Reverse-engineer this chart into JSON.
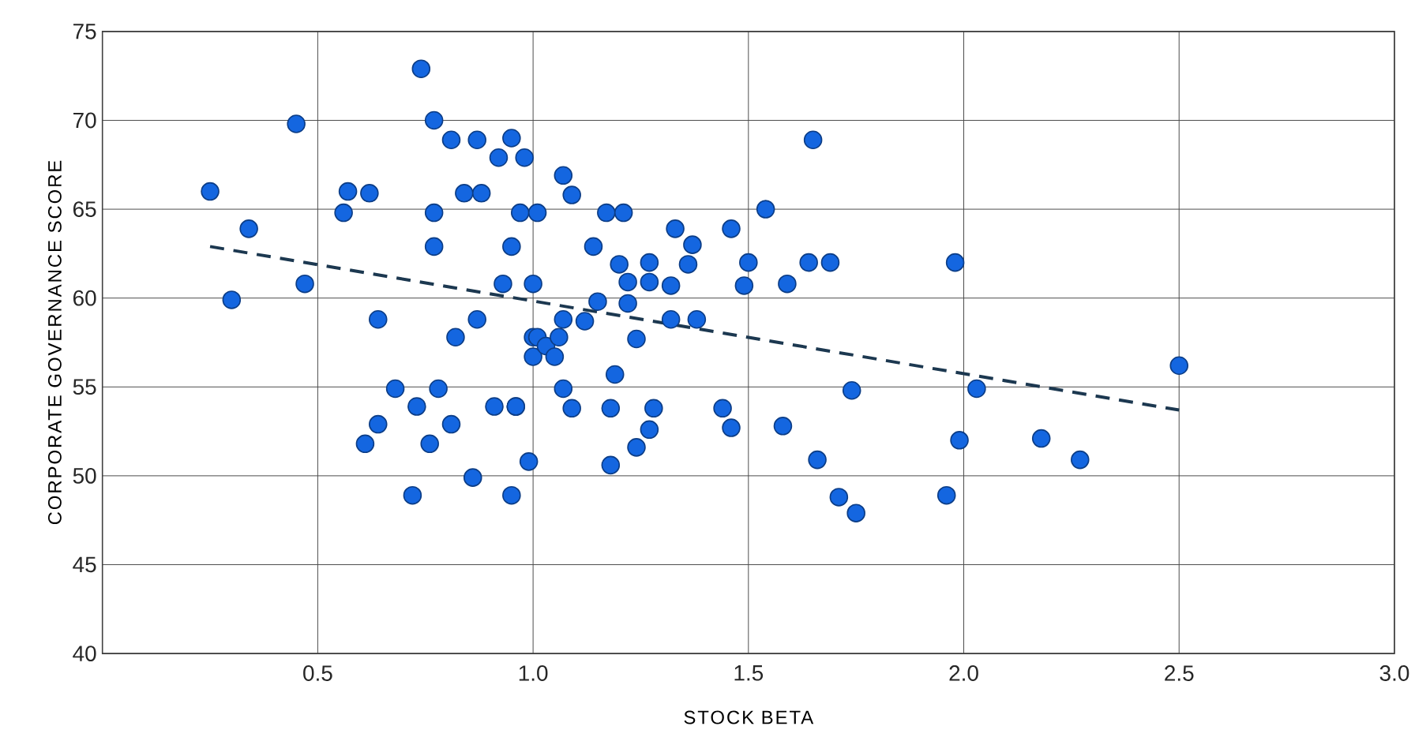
{
  "chart_data": {
    "type": "scatter",
    "xlabel": "STOCK BETA",
    "ylabel": "CORPORATE GOVERNANCE SCORE",
    "xlim": [
      0,
      3
    ],
    "ylim": [
      40,
      75
    ],
    "xticks": [
      {
        "value": 0.5,
        "label": "0.5"
      },
      {
        "value": 1,
        "label": "1.0"
      },
      {
        "value": 1.5,
        "label": "1.5"
      },
      {
        "value": 2,
        "label": "2.0"
      },
      {
        "value": 2.5,
        "label": "2.5"
      },
      {
        "value": 3,
        "label": "3.0"
      }
    ],
    "yticks": [
      40,
      45,
      50,
      55,
      60,
      65,
      70,
      75
    ],
    "grid": true,
    "marker": "circle",
    "series": [
      {
        "color": "#1466e0",
        "x": [
          0.25,
          0.3,
          0.34,
          0.45,
          0.47,
          0.56,
          0.57,
          0.62,
          0.61,
          0.64,
          0.64,
          0.68,
          0.72,
          0.73,
          0.74,
          0.76,
          0.77,
          0.77,
          0.77,
          0.78,
          0.81,
          0.81,
          0.82,
          0.84,
          0.86,
          0.87,
          0.87,
          0.88,
          0.91,
          0.92,
          0.93,
          0.95,
          0.95,
          0.95,
          0.96,
          0.96,
          0.97,
          0.98,
          0.99,
          1.0,
          1.0,
          1.0,
          1.01,
          1.01,
          1.03,
          1.05,
          1.06,
          1.07,
          1.07,
          1.07,
          1.09,
          1.09,
          1.12,
          1.14,
          1.15,
          1.17,
          1.18,
          1.18,
          1.19,
          1.2,
          1.21,
          1.22,
          1.22,
          1.24,
          1.24,
          1.27,
          1.27,
          1.27,
          1.28,
          1.32,
          1.32,
          1.33,
          1.36,
          1.37,
          1.38,
          1.44,
          1.46,
          1.46,
          1.49,
          1.5,
          1.54,
          1.58,
          1.59,
          1.64,
          1.65,
          1.66,
          1.69,
          1.71,
          1.74,
          1.75,
          1.96,
          1.98,
          1.99,
          2.03,
          2.18,
          2.27,
          2.5
        ],
        "values": [
          66,
          59.9,
          63.9,
          69.8,
          60.8,
          64.8,
          66,
          65.9,
          51.8,
          58.8,
          52.9,
          54.9,
          48.9,
          53.9,
          72.9,
          51.8,
          70,
          64.8,
          62.9,
          54.9,
          68.9,
          52.9,
          57.8,
          65.9,
          49.9,
          68.9,
          58.8,
          65.9,
          53.9,
          67.9,
          60.8,
          69,
          62.9,
          48.9,
          53.9,
          53.9,
          64.8,
          67.9,
          50.8,
          60.8,
          57.8,
          56.7,
          64.8,
          57.8,
          57.3,
          56.7,
          57.8,
          66.9,
          58.8,
          54.9,
          65.8,
          53.8,
          58.7,
          62.9,
          59.8,
          64.8,
          53.8,
          50.6,
          55.7,
          61.9,
          64.8,
          60.9,
          59.7,
          57.7,
          51.6,
          62,
          60.9,
          52.6,
          53.8,
          60.7,
          58.8,
          63.9,
          61.9,
          63,
          58.8,
          53.8,
          63.9,
          52.7,
          60.7,
          62,
          65,
          52.8,
          60.8,
          62,
          68.9,
          50.9,
          62,
          48.8,
          54.8,
          47.9,
          48.9,
          62,
          52,
          54.9,
          52.1,
          50.9,
          56.2
        ]
      },
      {
        "type": "line",
        "color": "#1c3850",
        "line_style": "dashed",
        "marker": "none",
        "x": [
          0.25,
          2.5
        ],
        "values": [
          62.9,
          53.7
        ]
      }
    ]
  }
}
